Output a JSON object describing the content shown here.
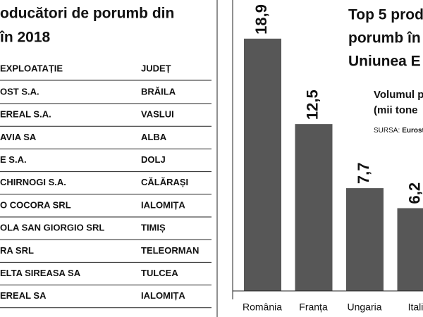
{
  "table": {
    "title": [
      "oducători de porumb din",
      "în 2018"
    ],
    "header": [
      "EXPLOATAȚIE",
      "JUDEȚ"
    ],
    "rows": [
      [
        "OST S.A.",
        "BRĂILA"
      ],
      [
        "EREAL S.A.",
        "VASLUI"
      ],
      [
        "AVIA SA",
        "ALBA"
      ],
      [
        "E S.A.",
        "DOLJ"
      ],
      [
        "CHIRNOGI S.A.",
        "CĂLĂRAȘI"
      ],
      [
        "O COCORA SRL",
        "IALOMIȚA"
      ],
      [
        "OLA SAN GIORGIO SRL",
        "TIMIȘ"
      ],
      [
        "RA SRL",
        "TELEORMAN"
      ],
      [
        "ELTA SIREASA SA",
        "TULCEA"
      ],
      [
        "EREAL SA",
        "IALOMIȚA"
      ]
    ]
  },
  "chart_data": {
    "type": "bar",
    "title": [
      "Top 5 prod",
      "porumb în",
      "Uniunea E"
    ],
    "subtitle": [
      "Volumul p",
      "(mii tone"
    ],
    "source_label": "SURSA:",
    "source": "Eurostat",
    "categories": [
      "România",
      "Franța",
      "Ungaria",
      "Itali"
    ],
    "values": [
      18.9,
      12.5,
      7.7,
      6.2
    ],
    "value_labels": [
      "18,9",
      "12,5",
      "7,7",
      "6,2"
    ],
    "color": "#575757",
    "ylim": [
      0,
      20
    ]
  }
}
